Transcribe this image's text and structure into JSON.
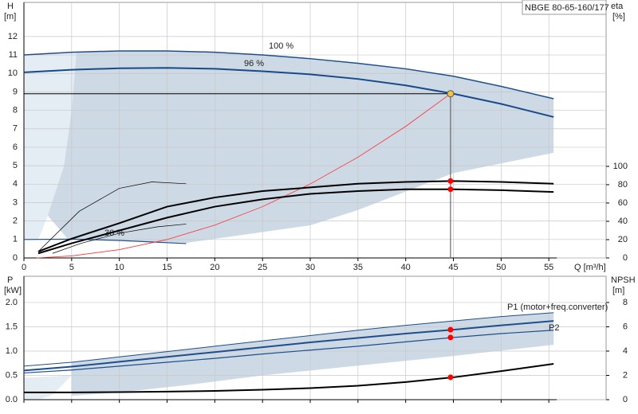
{
  "chart_data": [
    {
      "type": "line",
      "title": "NBGE 80-65-160/177",
      "x_label": "Q [m³/h]",
      "y_label": "H",
      "y_unit": "[m]",
      "y2_label": "eta",
      "y2_unit": "[%]",
      "xlim": [
        0,
        61
      ],
      "xticks": [
        0,
        5,
        10,
        15,
        20,
        25,
        30,
        35,
        40,
        45,
        50,
        55
      ],
      "xtick_labels": true,
      "ylim": [
        0,
        13.85
      ],
      "yticks": [
        0,
        1,
        2,
        3,
        4,
        5,
        6,
        7,
        8,
        9,
        10,
        11,
        12
      ],
      "y2lim": [
        0,
        279
      ],
      "y2ticks": [
        0,
        20,
        40,
        60,
        80,
        100
      ],
      "grid": true,
      "ranges": [
        {
          "color": "#e4ecf4",
          "x": [
            0,
            0,
            5.5,
            5,
            4.2,
            2.5,
            1.5
          ],
          "y": [
            1.0,
            11.0,
            11.15,
            8,
            5,
            2.3,
            1.0
          ]
        },
        {
          "color": "#cdd9e5",
          "x": [
            5.5,
            10,
            15,
            20,
            25,
            30,
            35,
            40,
            45,
            50,
            55.5,
            55.5,
            45,
            35,
            30,
            17,
            10,
            4.6,
            2.5,
            4.2,
            5
          ],
          "y": [
            11.15,
            11.22,
            11.22,
            11.15,
            11.0,
            10.8,
            10.55,
            10.25,
            9.85,
            9.3,
            8.63,
            5.7,
            4.6,
            2.6,
            1.77,
            0.82,
            0.95,
            1.02,
            2.3,
            5,
            8
          ]
        }
      ],
      "series": [
        {
          "name": "100 %",
          "color": "#1f4e8c",
          "width": 1.5,
          "x": [
            0,
            5,
            10,
            15,
            20,
            25,
            30,
            35,
            40,
            45,
            50,
            55.5
          ],
          "values": [
            11.0,
            11.15,
            11.22,
            11.22,
            11.15,
            11.0,
            10.8,
            10.55,
            10.25,
            9.85,
            9.3,
            8.63
          ]
        },
        {
          "name": "96 %",
          "color": "#174a8a",
          "width": 2,
          "x": [
            0,
            5,
            10,
            15,
            20,
            25,
            30,
            35,
            40,
            45,
            50,
            55.5
          ],
          "values": [
            10.06,
            10.2,
            10.28,
            10.3,
            10.25,
            10.12,
            9.95,
            9.7,
            9.35,
            8.9,
            8.35,
            7.64
          ]
        },
        {
          "name": "30 %",
          "color": "#1f4e8c",
          "width": 1.2,
          "x": [
            0,
            5,
            10,
            17
          ],
          "values": [
            1.0,
            1.02,
            0.95,
            0.78
          ]
        },
        {
          "color": "#ff3030",
          "width": 0.8,
          "x": [
            1.3,
            5,
            10,
            15,
            20,
            25,
            30,
            35,
            40,
            44.7
          ],
          "values": [
            0,
            0.11,
            0.45,
            1.0,
            1.78,
            2.78,
            4.01,
            5.46,
            7.13,
            8.9
          ]
        },
        {
          "color": "#000000",
          "width": 2,
          "axis": "y2",
          "x": [
            1.5,
            5,
            10,
            15,
            20,
            25,
            30,
            35,
            40,
            45,
            50,
            55.5
          ],
          "values": [
            7,
            21,
            38,
            56,
            66,
            73,
            77,
            81,
            83,
            84,
            83,
            81
          ]
        },
        {
          "color": "#000000",
          "width": 2,
          "axis": "y2",
          "x": [
            1.5,
            5,
            10,
            15,
            20,
            25,
            30,
            35,
            40,
            45,
            50,
            55.5
          ],
          "values": [
            5,
            16,
            30,
            44,
            56,
            64,
            70,
            73,
            75,
            75,
            74,
            72
          ]
        },
        {
          "color": "#000000",
          "width": 0.7,
          "axis": "y2",
          "x": [
            1.5,
            5.8,
            10,
            13.4,
            17
          ],
          "values": [
            7,
            51,
            76,
            83,
            81
          ]
        },
        {
          "color": "#000000",
          "width": 0.7,
          "axis": "y2",
          "x": [
            3,
            6,
            10,
            14,
            17
          ],
          "values": [
            5,
            16,
            27,
            34,
            37
          ]
        }
      ],
      "duty_point": {
        "x": 44.7,
        "y": 8.9,
        "color": "#f5c542"
      },
      "markers": [
        {
          "y": 84,
          "axis": "y2",
          "color": "#ff0000"
        },
        {
          "y": 75,
          "axis": "y2",
          "color": "#ff0000"
        }
      ]
    },
    {
      "type": "line",
      "y_label": "P",
      "y_unit": "[kW]",
      "y2_label": "NPSH",
      "y2_unit": "[m]",
      "xlim": [
        0,
        61
      ],
      "xticks": [
        0,
        5,
        10,
        15,
        20,
        25,
        30,
        35,
        40,
        45,
        50,
        55
      ],
      "xtick_labels": false,
      "ylim": [
        0,
        2.54
      ],
      "yticks": [
        {
          "value": 0,
          "label": "0.0"
        },
        0.5,
        {
          "value": 1,
          "label": "1.0"
        },
        1.5,
        {
          "value": 2,
          "label": "2.0"
        }
      ],
      "y2lim": [
        0,
        10.16
      ],
      "y2ticks": [
        0,
        2,
        4,
        6,
        8
      ],
      "grid": true,
      "ranges": [
        {
          "color": "#e4ecf4",
          "x": [
            0,
            0,
            5,
            3,
            1.5
          ],
          "y": [
            0,
            0.45,
            0.5,
            0.1,
            0
          ]
        },
        {
          "color": "#cdd9e5",
          "x": [
            5,
            10,
            15,
            20,
            25,
            30,
            35,
            40,
            45,
            50,
            55.5,
            55.5,
            45,
            35,
            25,
            17,
            10,
            5
          ],
          "y": [
            0.77,
            0.88,
            0.99,
            1.1,
            1.21,
            1.32,
            1.43,
            1.53,
            1.62,
            1.71,
            1.79,
            1.13,
            0.9,
            0.7,
            0.5,
            0.3,
            0.15,
            0.08
          ]
        }
      ],
      "series": [
        {
          "name": "P1 (motor+freq.converter)",
          "color": "#1f4e8c",
          "width": 2,
          "x": [
            0,
            5,
            10,
            15,
            20,
            25,
            30,
            35,
            40,
            45,
            50,
            55.5
          ],
          "values": [
            0.6,
            0.68,
            0.78,
            0.88,
            0.98,
            1.08,
            1.18,
            1.27,
            1.36,
            1.44,
            1.53,
            1.62
          ]
        },
        {
          "name": "P2",
          "color": "#1f4e8c",
          "width": 1.2,
          "x": [
            0,
            5,
            10,
            15,
            20,
            25,
            30,
            35,
            40,
            45,
            50,
            55.5
          ],
          "values": [
            0.55,
            0.61,
            0.69,
            0.77,
            0.85,
            0.94,
            1.02,
            1.1,
            1.19,
            1.28,
            1.36,
            1.43
          ]
        },
        {
          "color": "#1f4e8c",
          "width": 1,
          "x": [
            0,
            5,
            10,
            15,
            20,
            25,
            30,
            35,
            40,
            45,
            50,
            55.5
          ],
          "values": [
            0.69,
            0.77,
            0.88,
            0.99,
            1.1,
            1.21,
            1.32,
            1.43,
            1.53,
            1.62,
            1.71,
            1.79
          ]
        },
        {
          "color": "#000000",
          "width": 2,
          "axis": "y2",
          "x": [
            0,
            5,
            10,
            15,
            20,
            25,
            30,
            35,
            40,
            45,
            50,
            55.5
          ],
          "values": [
            0.6,
            0.6,
            0.62,
            0.66,
            0.72,
            0.82,
            0.95,
            1.15,
            1.45,
            1.84,
            2.35,
            2.95
          ]
        }
      ],
      "duty_x": 44.7,
      "markers": [
        {
          "y": 1.44,
          "color": "#ff0000"
        },
        {
          "y": 1.28,
          "color": "#ff0000"
        },
        {
          "y": 1.84,
          "axis": "y2",
          "color": "#ff0000"
        }
      ]
    }
  ]
}
